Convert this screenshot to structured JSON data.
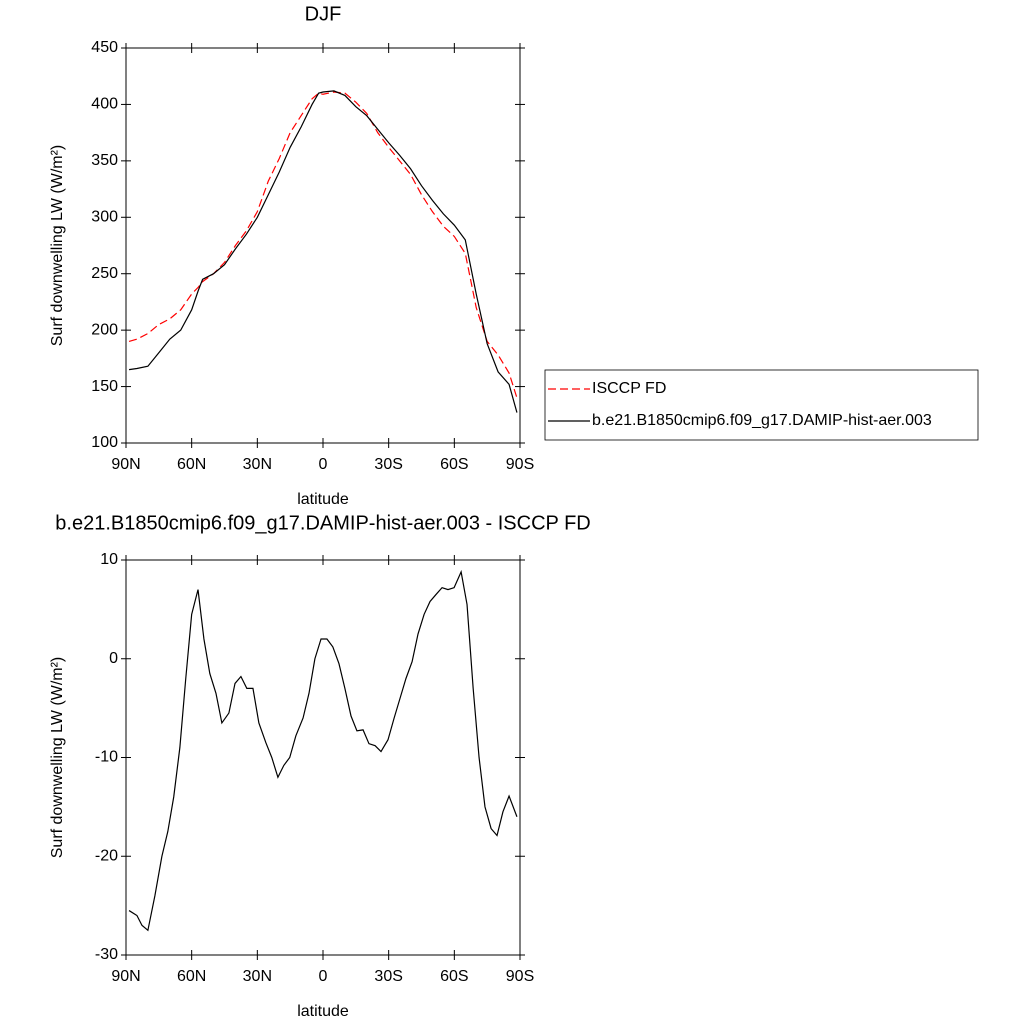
{
  "chart_data": [
    {
      "type": "line",
      "title": "DJF",
      "xlabel": "latitude",
      "ylabel": "Surf downwelling LW (W/m²)",
      "x": [
        88.6,
        85,
        80,
        75,
        70,
        65,
        60,
        57,
        55,
        50,
        45,
        40,
        35,
        30,
        25,
        20,
        15,
        10,
        5,
        2,
        0,
        -5,
        -10,
        -15,
        -20,
        -25,
        -30,
        -35,
        -40,
        -45,
        -50,
        -55,
        -60,
        -65,
        -70,
        -75,
        -80,
        -85,
        -88.6
      ],
      "series": [
        {
          "name": "ISCCP FD",
          "color": "#ff0000",
          "dashed": true,
          "values": [
            190,
            192,
            197,
            205,
            210,
            218,
            232,
            238,
            243,
            250,
            260,
            275,
            288,
            305,
            332,
            352,
            375,
            390,
            405,
            410,
            409,
            411,
            410,
            402,
            392,
            375,
            362,
            350,
            338,
            320,
            305,
            292,
            283,
            268,
            220,
            190,
            178,
            162,
            140
          ]
        },
        {
          "name": "b.e21.B1850cmip6.f09_g17.DAMIP-hist-aer.003",
          "color": "#000000",
          "dashed": false,
          "values": [
            165,
            166,
            168,
            180,
            192,
            200,
            218,
            235,
            245,
            250,
            258,
            272,
            285,
            300,
            320,
            340,
            362,
            380,
            400,
            410,
            411,
            412,
            408,
            398,
            390,
            378,
            366,
            355,
            343,
            328,
            315,
            303,
            293,
            280,
            232,
            188,
            163,
            152,
            127
          ]
        }
      ],
      "xlim": [
        90,
        -90
      ],
      "xticks": [
        {
          "value": 90,
          "label": "90N"
        },
        {
          "value": 60,
          "label": "60N"
        },
        {
          "value": 30,
          "label": "30N"
        },
        0,
        {
          "value": -30,
          "label": "30S"
        },
        {
          "value": -60,
          "label": "60S"
        },
        {
          "value": -90,
          "label": "90S"
        }
      ],
      "ylim": [
        100,
        450
      ],
      "yticks": [
        100,
        150,
        200,
        250,
        300,
        350,
        400,
        450
      ],
      "legend": "right"
    },
    {
      "type": "line",
      "title": "b.e21.B1850cmip6.f09_g17.DAMIP-hist-aer.003 - ISCCP FD",
      "xlabel": "latitude",
      "ylabel": "Surf downwelling LW (W/m²)",
      "x": [
        88.6,
        85.0,
        82.7,
        80.0,
        76.8,
        73.6,
        70.9,
        68.2,
        65.4,
        62.7,
        60.0,
        57.1,
        54.4,
        51.7,
        48.9,
        46.2,
        43.0,
        40.2,
        37.5,
        34.8,
        32.0,
        29.3,
        26.1,
        23.4,
        20.6,
        17.9,
        15.2,
        12.4,
        9.1,
        6.4,
        3.7,
        0.9,
        -1.8,
        -4.5,
        -7.3,
        -10.0,
        -12.8,
        -15.5,
        -18.3,
        -21.0,
        -23.8,
        -26.5,
        -29.7,
        -32.5,
        -35.2,
        -37.9,
        -40.7,
        -43.4,
        -46.2,
        -48.9,
        -51.6,
        -54.4,
        -57.1,
        -59.9,
        -63.1,
        -65.8,
        -68.6,
        -71.3,
        -74.0,
        -76.8,
        -79.5,
        -82.2,
        -85.0,
        -88.6
      ],
      "values": [
        -25.5,
        -26,
        -27,
        -27.5,
        -24,
        -20,
        -17.5,
        -14,
        -9,
        -2,
        4.5,
        7,
        2,
        -1.5,
        -3.5,
        -6.5,
        -5.5,
        -2.5,
        -1.8,
        -3,
        -3,
        -6.5,
        -8.5,
        -10,
        -12,
        -10.8,
        -10,
        -7.8,
        -6,
        -3.5,
        0,
        2,
        2,
        1.2,
        -0.5,
        -3,
        -5.8,
        -7.3,
        -7.2,
        -8.6,
        -8.8,
        -9.4,
        -8.2,
        -6,
        -4,
        -2,
        -0.3,
        2.5,
        4.5,
        5.8,
        6.5,
        7.2,
        7,
        7.2,
        8.8,
        5.5,
        -3,
        -10,
        -15,
        -17.2,
        -17.9,
        -15.5,
        -13.9,
        -16
      ],
      "color": "#000000",
      "xlim": [
        90,
        -90
      ],
      "xticks": [
        {
          "value": 90,
          "label": "90N"
        },
        {
          "value": 60,
          "label": "60N"
        },
        {
          "value": 30,
          "label": "30N"
        },
        0,
        {
          "value": -30,
          "label": "30S"
        },
        {
          "value": -60,
          "label": "60S"
        },
        {
          "value": -90,
          "label": "90S"
        }
      ],
      "ylim": [
        -30,
        10
      ],
      "yticks": [
        -30,
        -20,
        -10,
        0,
        10
      ]
    }
  ]
}
